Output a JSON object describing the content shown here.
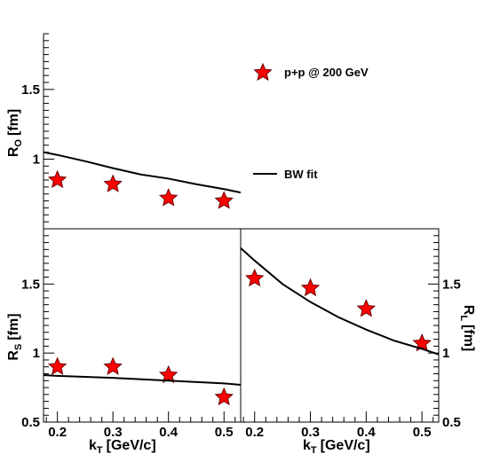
{
  "chart_data": [
    {
      "panel": "RO",
      "type": "scatter",
      "ylabel": "R",
      "ylabel_sub": "O",
      "ylabel_unit": "[fm]",
      "ylim": [
        0.5,
        1.9
      ],
      "xlim": [
        0.175,
        0.53
      ],
      "yticks": [
        1,
        1.5
      ],
      "ytick_labels": [
        "1",
        "1.5"
      ],
      "series": [
        {
          "name": "p+p @ 200 GeV",
          "kind": "points",
          "x": [
            0.2,
            0.3,
            0.4,
            0.5
          ],
          "y": [
            0.85,
            0.82,
            0.72,
            0.7
          ]
        },
        {
          "name": "BW fit",
          "kind": "line",
          "x": [
            0.175,
            0.2,
            0.25,
            0.3,
            0.35,
            0.4,
            0.45,
            0.5,
            0.53
          ],
          "y": [
            1.05,
            1.03,
            0.985,
            0.935,
            0.89,
            0.86,
            0.82,
            0.785,
            0.76
          ]
        }
      ]
    },
    {
      "panel": "RS",
      "type": "scatter",
      "xlabel": "k",
      "xlabel_sub": "T",
      "xlabel_unit": "[GeV/c]",
      "ylabel": "R",
      "ylabel_sub": "S",
      "ylabel_unit": "[fm]",
      "ylim": [
        0.5,
        1.9
      ],
      "xlim": [
        0.175,
        0.53
      ],
      "yticks": [
        0.5,
        1,
        1.5
      ],
      "ytick_labels": [
        "0.5",
        "1",
        "1.5"
      ],
      "xticks": [
        0.2,
        0.3,
        0.4,
        0.5
      ],
      "xtick_labels": [
        "0.2",
        "0.3",
        "0.4",
        "0.5"
      ],
      "series": [
        {
          "name": "p+p @ 200 GeV",
          "kind": "points",
          "x": [
            0.2,
            0.3,
            0.4,
            0.5
          ],
          "y": [
            0.9,
            0.9,
            0.84,
            0.68
          ]
        },
        {
          "name": "BW fit",
          "kind": "line",
          "x": [
            0.175,
            0.2,
            0.3,
            0.4,
            0.5,
            0.53
          ],
          "y": [
            0.84,
            0.835,
            0.82,
            0.8,
            0.78,
            0.77
          ]
        }
      ]
    },
    {
      "panel": "RL",
      "type": "scatter",
      "xlabel": "k",
      "xlabel_sub": "T",
      "xlabel_unit": "[GeV/c]",
      "ylabel": "R",
      "ylabel_sub": "L",
      "ylabel_unit": "[fm]",
      "ylim": [
        0.5,
        1.9
      ],
      "xlim": [
        0.175,
        0.53
      ],
      "yticks": [
        0.5,
        1,
        1.5
      ],
      "ytick_labels": [
        "0.5",
        "1",
        "1.5"
      ],
      "xticks": [
        0.2,
        0.3,
        0.4,
        0.5
      ],
      "xtick_labels": [
        "0.2",
        "0.3",
        "0.4",
        "0.5"
      ],
      "series": [
        {
          "name": "p+p @ 200 GeV",
          "kind": "points",
          "x": [
            0.2,
            0.3,
            0.4,
            0.5
          ],
          "y": [
            1.54,
            1.47,
            1.32,
            1.07
          ]
        },
        {
          "name": "BW fit",
          "kind": "line",
          "x": [
            0.175,
            0.2,
            0.25,
            0.3,
            0.35,
            0.4,
            0.45,
            0.5,
            0.53
          ],
          "y": [
            1.76,
            1.67,
            1.5,
            1.37,
            1.26,
            1.17,
            1.09,
            1.03,
            0.99
          ]
        }
      ]
    }
  ],
  "legend": {
    "points_label": "p+p @ 200 GeV",
    "line_label": "BW fit"
  },
  "colors": {
    "marker_fill": "#ff0000",
    "marker_edge": "#6b0000",
    "line": "#000000"
  }
}
